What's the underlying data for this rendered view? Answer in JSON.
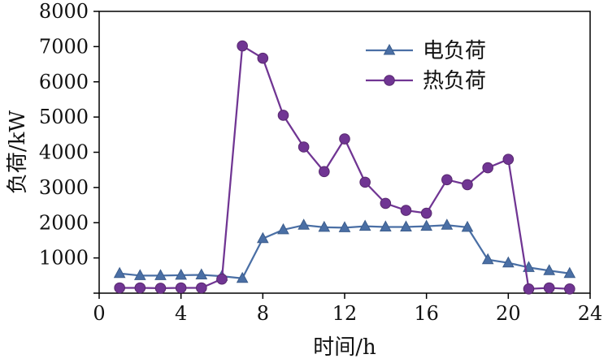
{
  "chart_data": {
    "type": "line",
    "title": "",
    "xlabel": "时间/h",
    "ylabel": "负荷/kW",
    "xlim": [
      0,
      24
    ],
    "ylim": [
      0,
      8000
    ],
    "xticks": [
      0,
      4,
      8,
      12,
      16,
      20,
      24
    ],
    "yticks": [
      0,
      1000,
      2000,
      3000,
      4000,
      5000,
      6000,
      7000,
      8000
    ],
    "grid": false,
    "legend_position": "top-right-inside",
    "x": [
      1,
      2,
      3,
      4,
      5,
      6,
      7,
      8,
      9,
      10,
      11,
      12,
      13,
      14,
      15,
      16,
      17,
      18,
      19,
      20,
      21,
      22,
      23
    ],
    "series": [
      {
        "name": "电负荷",
        "marker": "triangle",
        "color": "#4a6fa5",
        "edge_color": "#3c5d8c",
        "values": [
          560,
          500,
          500,
          510,
          520,
          480,
          420,
          1550,
          1800,
          1930,
          1870,
          1860,
          1900,
          1880,
          1880,
          1900,
          1930,
          1870,
          950,
          860,
          730,
          640,
          560
        ]
      },
      {
        "name": "热负荷",
        "marker": "circle",
        "color": "#703593",
        "edge_color": "#58296f",
        "values": [
          150,
          150,
          140,
          150,
          150,
          400,
          7020,
          6670,
          5050,
          4150,
          3450,
          4380,
          3150,
          2550,
          2350,
          2270,
          3220,
          3080,
          3560,
          3800,
          120,
          150,
          120
        ]
      }
    ]
  }
}
